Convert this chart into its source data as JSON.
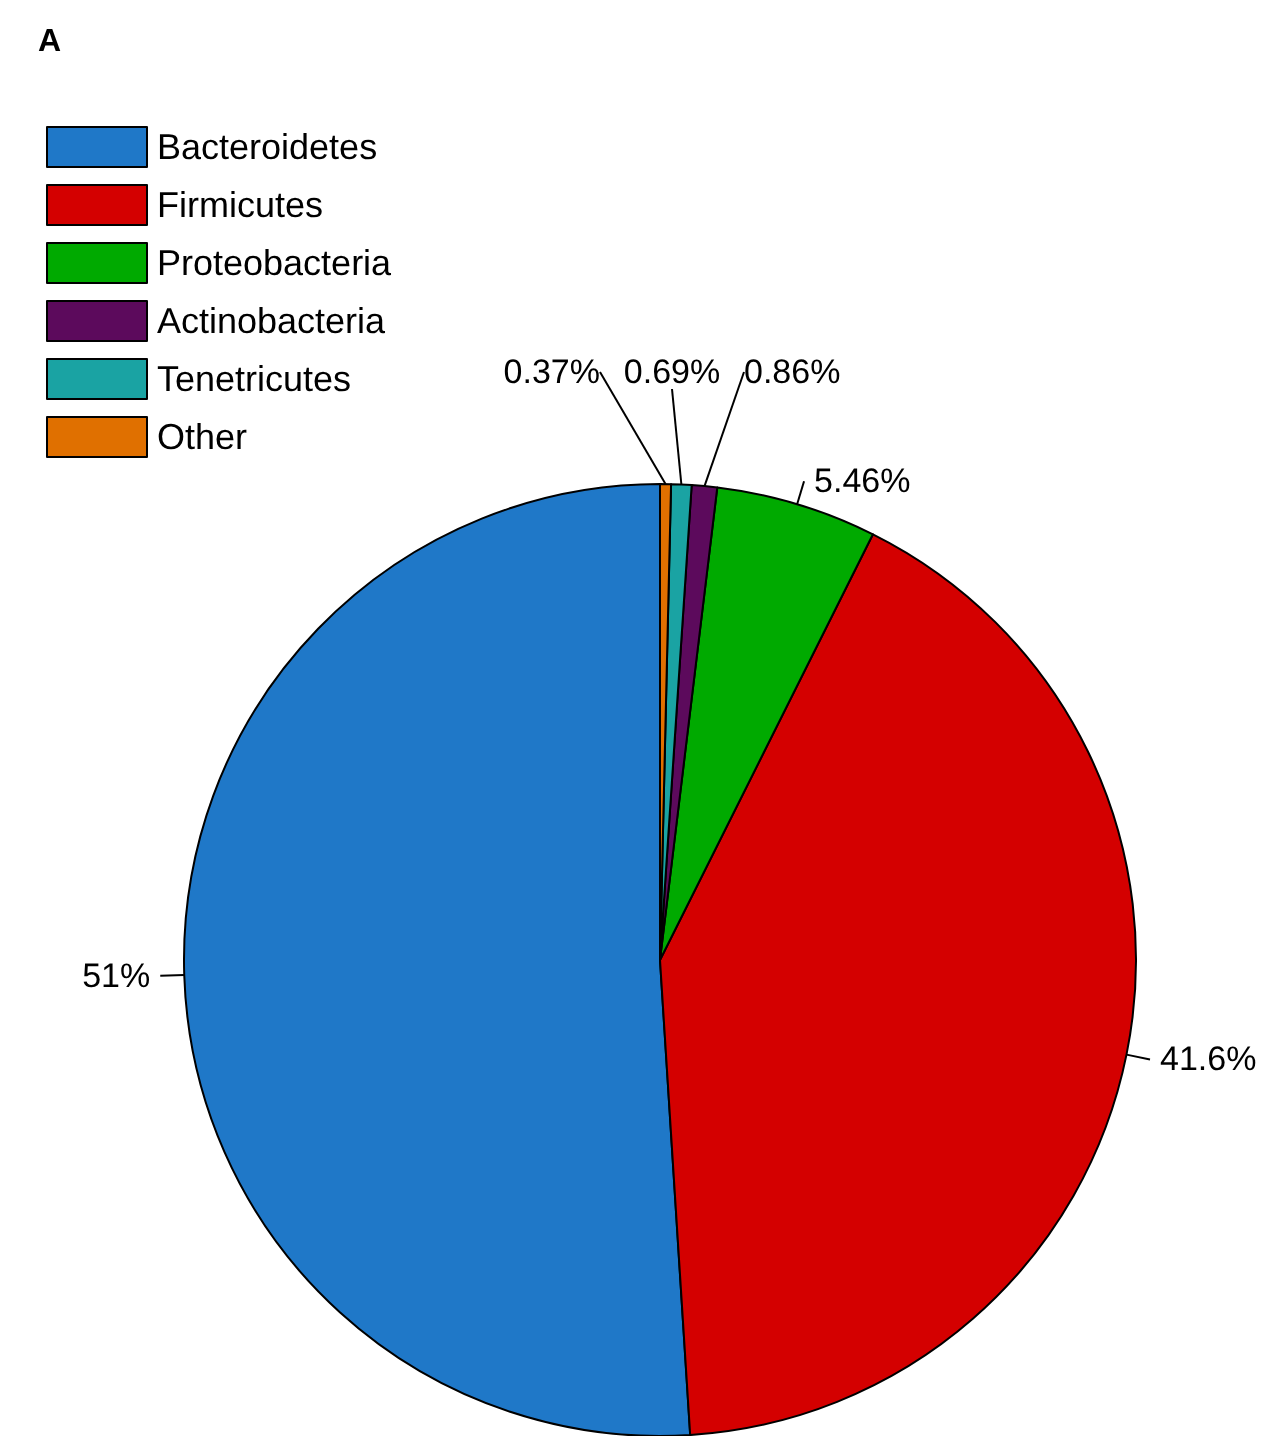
{
  "chart_data": {
    "type": "pie",
    "title": "A",
    "categories": [
      "Bacteroidetes",
      "Firmicutes",
      "Proteobacteria",
      "Actinobacteria",
      "Tenetricutes",
      "Other"
    ],
    "values": [
      51,
      41.6,
      5.46,
      0.86,
      0.69,
      0.37
    ],
    "value_labels": [
      "51%",
      "41.6%",
      "5.46%",
      "0.86%",
      "0.69%",
      "0.37%"
    ],
    "colors": [
      "#1f78c8",
      "#d40000",
      "#00aa00",
      "#5c0a5c",
      "#1aa3a3",
      "#e07000"
    ],
    "legend": "top left"
  }
}
